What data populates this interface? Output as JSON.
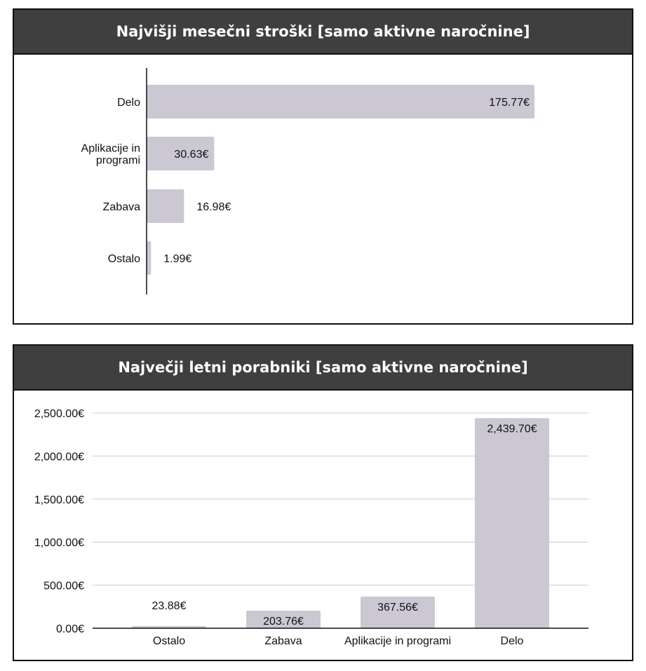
{
  "colors": {
    "header_bg": "#3f3f3f",
    "bar": "#cbc8d4",
    "grid": "#cccccc"
  },
  "chart_data": [
    {
      "type": "bar",
      "orientation": "horizontal",
      "title": "Najvišji mesečni stroški [samo aktivne naročnine]",
      "categories": [
        "Delo",
        "Aplikacije in programi",
        "Zabava",
        "Ostalo"
      ],
      "category_lines": [
        [
          "Delo"
        ],
        [
          "Aplikacije in",
          "programi"
        ],
        [
          "Zabava"
        ],
        [
          "Ostalo"
        ]
      ],
      "values": [
        175.77,
        30.63,
        16.98,
        1.99
      ],
      "value_labels": [
        "175.77€",
        "30.63€",
        "16.98€",
        "1.99€"
      ],
      "xlim": [
        0,
        175.77
      ],
      "grid": false
    },
    {
      "type": "bar",
      "orientation": "vertical",
      "title": "Največji letni porabniki [samo aktivne naročnine]",
      "categories": [
        "Ostalo",
        "Zabava",
        "Aplikacije in programi",
        "Delo"
      ],
      "values": [
        23.88,
        203.76,
        367.56,
        2439.7
      ],
      "value_labels": [
        "23.88€",
        "203.76€",
        "367.56€",
        "2,439.70€"
      ],
      "ylim": [
        0,
        2500
      ],
      "yticks": [
        0,
        500,
        1000,
        1500,
        2000,
        2500
      ],
      "ytick_labels": [
        "0.00€",
        "500.00€",
        "1,000.00€",
        "1,500.00€",
        "2,000.00€",
        "2,500.00€"
      ],
      "grid": true
    }
  ]
}
